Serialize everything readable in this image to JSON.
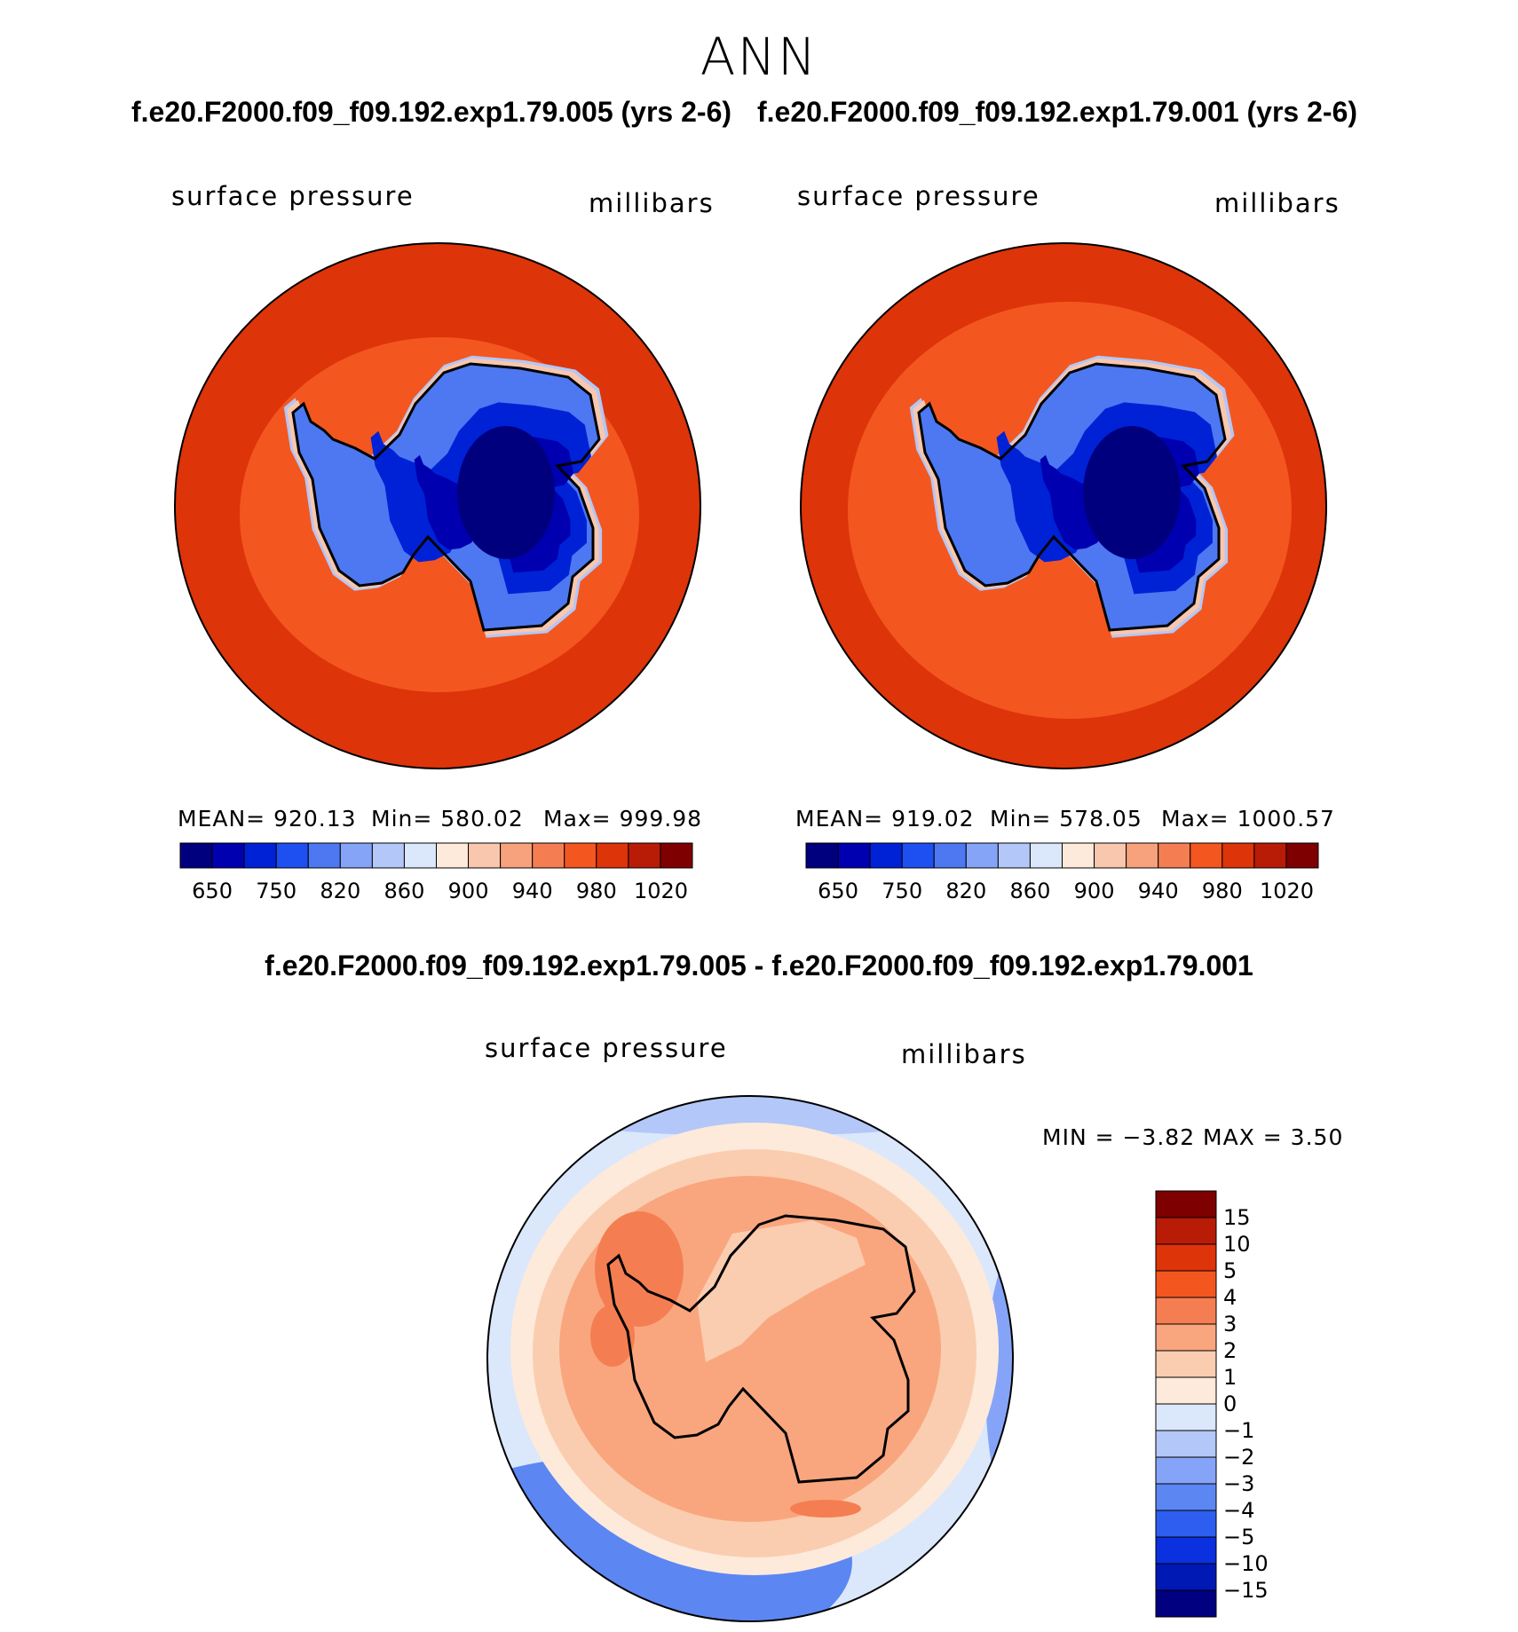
{
  "title": "ANN",
  "panels": [
    {
      "case_title": "f.e20.F2000.f09_f09.192.exp1.79.005 (yrs 2-6)",
      "variable": "surface pressure",
      "units": "millibars",
      "mean_text": "MEAN=  920.13",
      "min_text": "Min=  580.02",
      "max_text": "Max=  999.98"
    },
    {
      "case_title": "f.e20.F2000.f09_f09.192.exp1.79.001 (yrs 2-6)",
      "variable": "surface pressure",
      "units": "millibars",
      "mean_text": "MEAN=  919.02",
      "min_text": "Min=  578.05",
      "max_text": "Max=  1000.57"
    }
  ],
  "abs_colorbar": {
    "colors": [
      "#00007f",
      "#0000b0",
      "#0022d6",
      "#1e4ff0",
      "#4d78f2",
      "#86a4f7",
      "#b3c7f8",
      "#dbe7fb",
      "#fdeadb",
      "#f9c7ad",
      "#f7a27c",
      "#f47e52",
      "#f45620",
      "#dd3409",
      "#b81c06",
      "#7f0000"
    ],
    "labels": [
      "650",
      "750",
      "820",
      "860",
      "900",
      "940",
      "980",
      "1020"
    ]
  },
  "diff": {
    "title": "f.e20.F2000.f09_f09.192.exp1.79.005 - f.e20.F2000.f09_f09.192.exp1.79.001",
    "variable": "surface pressure",
    "units": "millibars",
    "minmax_text": "MIN =   −3.82  MAX =     3.50"
  },
  "diff_colorbar": {
    "colors": [
      "#7f0000",
      "#b81c06",
      "#dd3409",
      "#f45620",
      "#f47e52",
      "#f9a67e",
      "#fbcdb0",
      "#fdeadb",
      "#dbe7fb",
      "#b3c7f8",
      "#86a4f7",
      "#5c86f2",
      "#2d5ef0",
      "#0a30e0",
      "#0018b4",
      "#000080"
    ],
    "labels": [
      "15",
      "10",
      "5",
      "4",
      "3",
      "2",
      "1",
      "0",
      "−1",
      "−2",
      "−3",
      "−4",
      "−5",
      "−10",
      "−15"
    ]
  }
}
